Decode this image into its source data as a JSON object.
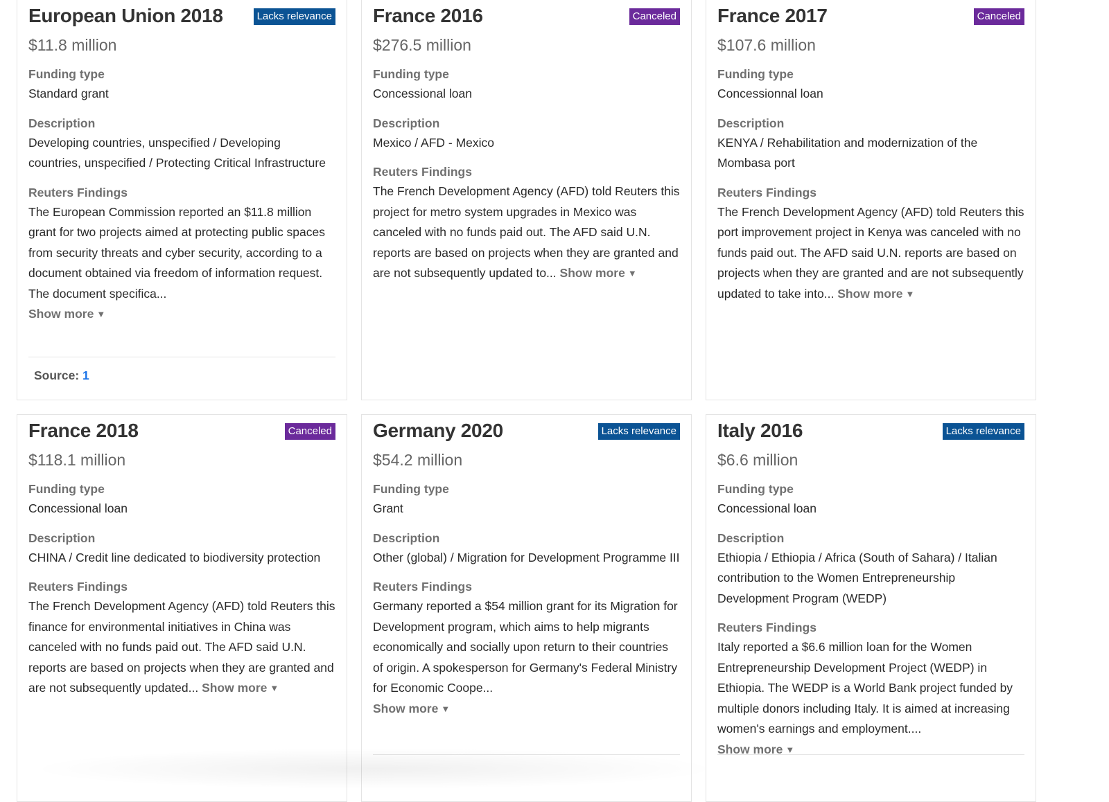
{
  "labels": {
    "funding_type": "Funding type",
    "description": "Description",
    "findings": "Reuters Findings",
    "show_more": "Show more",
    "source": "Source:"
  },
  "cards": [
    {
      "title": "European Union 2018",
      "badge": "Lacks relevance",
      "amount": "$11.8 million",
      "funding_type": "Standard grant",
      "description": "Developing countries, unspecified / Developing countries, unspecified / Protecting Critical Infrastructure",
      "findings": "The European Commission reported an $11.8 million grant for two projects aimed at protecting public spaces from security threats and cyber security, according to a document obtained via freedom of information request. The document specifica...",
      "source_link": "1"
    },
    {
      "title": "France 2016",
      "badge": "Canceled",
      "amount": "$276.5 million",
      "funding_type": "Concessional loan",
      "description": "Mexico / AFD - Mexico",
      "findings": "The French Development Agency (AFD) told Reuters this project for metro system upgrades in Mexico was canceled with no funds paid out. The AFD said U.N. reports are based on projects when they are granted and are not subsequently updated to..."
    },
    {
      "title": "France 2017",
      "badge": "Canceled",
      "amount": "$107.6 million",
      "funding_type": "Concessionnal loan",
      "description": "KENYA / Rehabilitation and modernization of the Mombasa port",
      "findings": "The French Development Agency (AFD) told Reuters this port improvement project in Kenya was canceled with no funds paid out. The AFD said U.N. reports are based on projects when they are granted and are not subsequently updated to take into..."
    },
    {
      "title": "France 2018",
      "badge": "Canceled",
      "amount": "$118.1 million",
      "funding_type": "Concessional loan",
      "description": "CHINA / Credit line dedicated to biodiversity protection",
      "findings": "The French Development Agency (AFD) told Reuters this finance for environmental initiatives in China was canceled with no funds paid out. The AFD said U.N. reports are based on projects when they are granted and are not subsequently updated..."
    },
    {
      "title": "Germany 2020",
      "badge": "Lacks relevance",
      "amount": "$54.2 million",
      "funding_type": "Grant",
      "description": "Other (global) / Migration for Development Programme III",
      "findings": "Germany reported a $54 million grant for its Migration for Development program, which aims to help migrants economically and socially upon return to their countries of origin. A spokesperson for Germany's Federal Ministry for Economic Coope..."
    },
    {
      "title": "Italy 2016",
      "badge": "Lacks relevance",
      "amount": "$6.6 million",
      "funding_type": "Concessional loan",
      "description": "Ethiopia / Ethiopia / Africa (South of Sahara) / Italian contribution to the Women Entrepreneurship Development Program (WEDP)",
      "findings": "Italy reported a $6.6 million loan for the Women Entrepreneurship Development Project (WEDP) in Ethiopia. The WEDP is a World Bank project funded by multiple donors including Italy. It is aimed at increasing women's earnings and employment...."
    }
  ],
  "colors": {
    "badge_lacks": "#0b5394",
    "badge_canceled": "#6b2a9b",
    "link": "#1a73e8"
  }
}
